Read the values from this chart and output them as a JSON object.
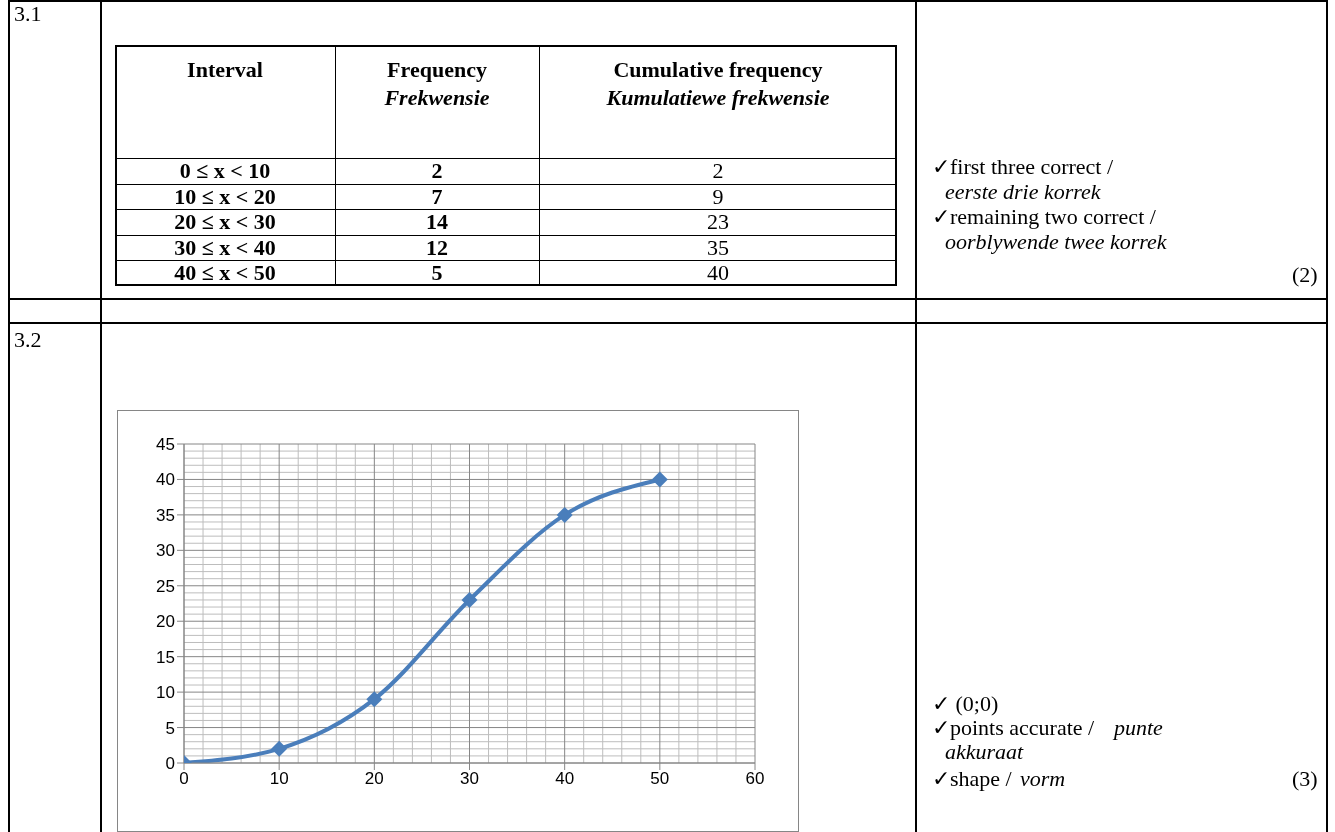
{
  "chart_data": {
    "type": "line",
    "x": [
      0,
      10,
      20,
      30,
      40,
      50
    ],
    "values": [
      0,
      2,
      9,
      23,
      35,
      40
    ],
    "color": "#4a7ebb",
    "xlim": [
      0,
      60
    ],
    "xticks": [
      0,
      10,
      20,
      30,
      40,
      50,
      60
    ],
    "ylim": [
      0,
      45
    ],
    "yticks": [
      0,
      5,
      10,
      15,
      20,
      25,
      30,
      35,
      40,
      45
    ],
    "grid": true,
    "marker": "diamond",
    "line_style": "solid",
    "annotations": [
      "3.1",
      "Interval",
      "Frequency",
      "Frekwensie",
      "Cumulative frequency",
      "Kumulatiewe frekwensie",
      "0 ≤ x < 10",
      "2",
      "2",
      "10 ≤ x < 20",
      "7",
      "9",
      "20 ≤ x < 30",
      "14",
      "23",
      "30 ≤ x < 40",
      "12",
      "35",
      "40 ≤ x < 50",
      "5",
      "40",
      "✓first three correct /",
      "eerste drie korrek",
      "✓remaining two correct /",
      "oorblywende twee korrek",
      "(2)",
      "3.2",
      "✓ (0;0)",
      "✓points accurate /",
      "punte",
      "akkuraat",
      "✓shape /",
      "vorm",
      "(3)"
    ]
  }
}
